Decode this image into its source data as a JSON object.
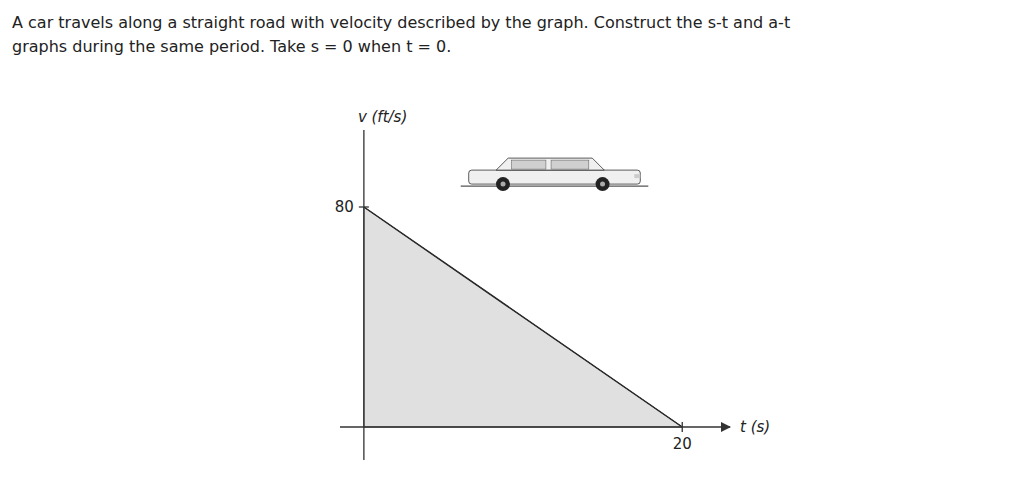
{
  "chart_data": {
    "type": "area",
    "title": "A car travels along a straight road with velocity described by the graph. Construct the s-t and a-t",
    "subtitle": "graphs during the same period. Take s = 0 when t = 0.",
    "x_label": "t (s)",
    "y_label": "v (ft/s)",
    "x": [
      0,
      20
    ],
    "values": [
      80,
      0
    ],
    "color": "#e0e0e0",
    "xlim": [
      -1.5,
      23
    ],
    "ylim": [
      -12,
      108
    ],
    "xticks": [
      20
    ],
    "yticks": [
      80
    ],
    "grid": false
  }
}
